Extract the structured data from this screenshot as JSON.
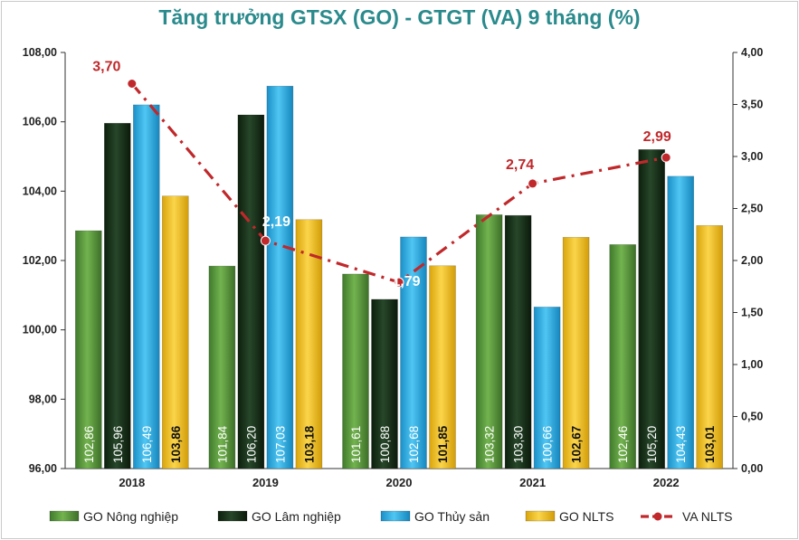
{
  "chart_data": {
    "type": "bar",
    "title": "Tăng trưởng GTSX (GO) - GTGT (VA) 9 tháng (%)",
    "categories": [
      "2018",
      "2019",
      "2020",
      "2021",
      "2022"
    ],
    "series": [
      {
        "name": "GO Nông nghiệp",
        "axis": "left",
        "color": "#5e9e3d",
        "labels": [
          "102,86",
          "101,84",
          "101,61",
          "103,32",
          "102,46"
        ],
        "values": [
          102.86,
          101.84,
          101.61,
          103.32,
          102.46
        ]
      },
      {
        "name": "GO Lâm nghiệp",
        "axis": "left",
        "color": "#1e3d1e",
        "labels": [
          "105,96",
          "106,20",
          "100,88",
          "103,30",
          "105,20"
        ],
        "values": [
          105.96,
          106.2,
          100.88,
          103.3,
          105.2
        ]
      },
      {
        "name": "GO Thủy sản",
        "axis": "left",
        "color": "#33b5ea",
        "labels": [
          "106,49",
          "107,03",
          "102,68",
          "100,66",
          "104,43"
        ],
        "values": [
          106.49,
          107.03,
          102.68,
          100.66,
          104.43
        ]
      },
      {
        "name": "GO NLTS",
        "axis": "left",
        "color": "#f3c31d",
        "labels": [
          "103,86",
          "103,18",
          "101,85",
          "102,67",
          "103,01"
        ],
        "values": [
          103.86,
          103.18,
          101.85,
          102.67,
          103.01
        ]
      }
    ],
    "line_series": {
      "name": "VA NLTS",
      "axis": "right",
      "type": "line",
      "color": "#c0282b",
      "labels": [
        "3,70",
        "2,19",
        "1,79",
        "2,74",
        "2,99"
      ],
      "values": [
        3.7,
        2.19,
        1.79,
        2.74,
        2.99
      ]
    },
    "y_left": {
      "min": 96,
      "max": 108,
      "step": 2,
      "tick_labels": [
        "96,00",
        "98,00",
        "100,00",
        "102,00",
        "104,00",
        "106,00",
        "108,00"
      ]
    },
    "y_right": {
      "min": 0,
      "max": 4,
      "step": 0.5,
      "tick_labels": [
        "0,00",
        "0,50",
        "1,00",
        "1,50",
        "2,00",
        "2,50",
        "3,00",
        "3,50",
        "4,00"
      ]
    },
    "grid": false,
    "legend_position": "bottom"
  }
}
